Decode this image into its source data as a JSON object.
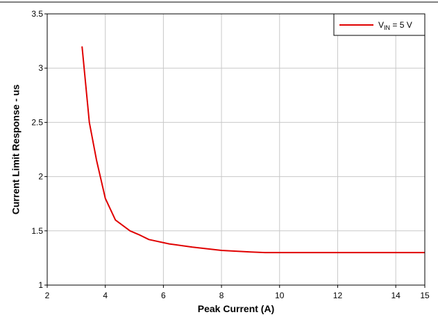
{
  "chart_data": {
    "type": "line",
    "title": "",
    "xlabel": "Peak Current (A)",
    "ylabel": "Current Limit Response - us",
    "xlim": [
      2,
      15
    ],
    "ylim": [
      1,
      3.5
    ],
    "x_ticks": [
      "2",
      "4",
      "6",
      "8",
      "10",
      "12",
      "14",
      "15"
    ],
    "y_ticks": [
      "1",
      "1.5",
      "2",
      "2.5",
      "3",
      "3.5"
    ],
    "grid": true,
    "legend_position": "top-right",
    "series": [
      {
        "name": "V_IN = 5 V",
        "legend": {
          "main": "V",
          "sub": "IN",
          "suffix": " = 5 V"
        },
        "color": "#e00000",
        "x": [
          3.2,
          3.45,
          3.7,
          4.0,
          4.35,
          4.85,
          5.2,
          5.5,
          6.2,
          7.0,
          8.0,
          9.0,
          9.5,
          10.5,
          12.0,
          13.5,
          15.0
        ],
        "y": [
          3.2,
          2.5,
          2.15,
          1.8,
          1.6,
          1.5,
          1.46,
          1.42,
          1.38,
          1.35,
          1.32,
          1.305,
          1.3,
          1.3,
          1.3,
          1.3,
          1.3
        ]
      }
    ]
  }
}
